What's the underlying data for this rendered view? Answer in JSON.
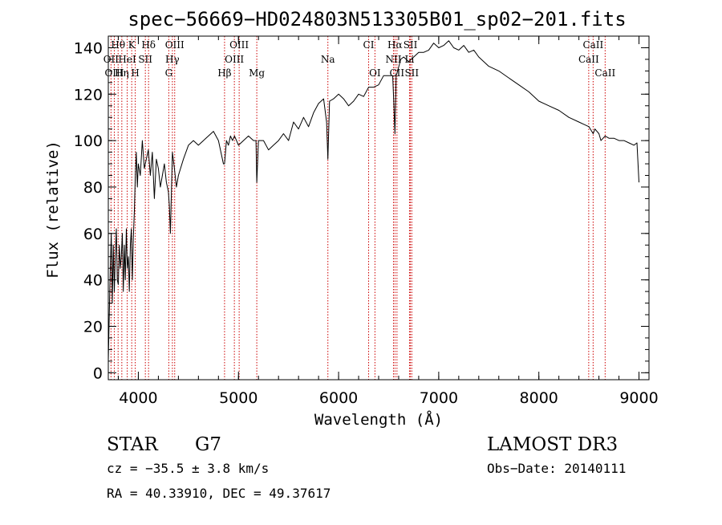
{
  "chart_data": {
    "type": "line",
    "title": "spec−56669−HD024803N513305B01_sp02−201.fits",
    "xlabel": "Wavelength (Å)",
    "ylabel": "Flux (relative)",
    "xlim": [
      3700,
      9100
    ],
    "ylim": [
      -3,
      145
    ],
    "xticks": [
      4000,
      5000,
      6000,
      7000,
      8000,
      9000
    ],
    "xtick_labels": [
      "4000",
      "5000",
      "6000",
      "7000",
      "8000",
      "9000"
    ],
    "yticks": [
      0,
      20,
      40,
      60,
      80,
      100,
      120,
      140
    ],
    "ytick_labels": [
      "0",
      "20",
      "40",
      "60",
      "80",
      "100",
      "120",
      "140"
    ],
    "grid": false,
    "line_color": "#000000",
    "marker_line_color": "#cc0000",
    "spectrum": {
      "name": "flux",
      "x": [
        3700,
        3710,
        3720,
        3730,
        3740,
        3750,
        3760,
        3770,
        3780,
        3790,
        3800,
        3810,
        3820,
        3830,
        3840,
        3850,
        3860,
        3870,
        3880,
        3890,
        3900,
        3910,
        3920,
        3930,
        3940,
        3950,
        3960,
        3970,
        3980,
        3990,
        4000,
        4020,
        4040,
        4060,
        4080,
        4100,
        4120,
        4140,
        4160,
        4180,
        4200,
        4220,
        4240,
        4260,
        4280,
        4300,
        4310,
        4320,
        4340,
        4360,
        4380,
        4400,
        4450,
        4500,
        4550,
        4600,
        4650,
        4700,
        4750,
        4800,
        4850,
        4861,
        4880,
        4900,
        4920,
        4940,
        4960,
        4980,
        5000,
        5050,
        5100,
        5150,
        5175,
        5183,
        5200,
        5250,
        5300,
        5350,
        5400,
        5450,
        5500,
        5550,
        5600,
        5650,
        5700,
        5750,
        5800,
        5850,
        5880,
        5893,
        5910,
        5950,
        6000,
        6050,
        6100,
        6150,
        6200,
        6250,
        6300,
        6350,
        6400,
        6450,
        6500,
        6540,
        6550,
        6563,
        6575,
        6590,
        6620,
        6650,
        6700,
        6750,
        6800,
        6850,
        6900,
        6950,
        7000,
        7050,
        7100,
        7150,
        7200,
        7250,
        7300,
        7350,
        7400,
        7500,
        7600,
        7700,
        7800,
        7900,
        8000,
        8100,
        8200,
        8300,
        8400,
        8450,
        8500,
        8542,
        8560,
        8600,
        8620,
        8662,
        8700,
        8750,
        8800,
        8850,
        8900,
        8950,
        8980,
        9000
      ],
      "y": [
        5,
        25,
        45,
        60,
        30,
        55,
        35,
        50,
        62,
        40,
        38,
        55,
        45,
        50,
        60,
        35,
        55,
        40,
        62,
        45,
        50,
        35,
        55,
        62,
        40,
        58,
        70,
        85,
        95,
        80,
        90,
        85,
        100,
        88,
        92,
        96,
        85,
        95,
        75,
        92,
        88,
        80,
        85,
        90,
        82,
        78,
        72,
        60,
        95,
        88,
        80,
        85,
        92,
        98,
        100,
        98,
        100,
        102,
        104,
        100,
        90,
        90,
        100,
        98,
        102,
        100,
        102,
        100,
        98,
        100,
        102,
        100,
        100,
        82,
        100,
        100,
        96,
        98,
        100,
        103,
        100,
        108,
        105,
        110,
        106,
        112,
        116,
        118,
        108,
        92,
        117,
        118,
        120,
        118,
        115,
        117,
        120,
        119,
        123,
        123,
        124,
        128,
        128,
        128,
        118,
        103,
        128,
        130,
        135,
        136,
        134,
        136,
        138,
        138,
        139,
        142,
        140,
        141,
        143,
        140,
        139,
        141,
        138,
        139,
        136,
        132,
        130,
        127,
        124,
        121,
        117,
        115,
        113,
        110,
        108,
        107,
        106,
        103,
        105,
        103,
        100,
        102,
        101,
        101,
        100,
        100,
        99,
        98,
        99,
        82
      ]
    },
    "spectral_lines": [
      {
        "label": "Hθ",
        "x": 3798,
        "row": 0
      },
      {
        "label": "K",
        "x": 3934,
        "row": 0
      },
      {
        "label": "Hδ",
        "x": 4102,
        "row": 0
      },
      {
        "label": "OIII",
        "x": 4363,
        "row": 0
      },
      {
        "label": "OIII",
        "x": 5007,
        "row": 0
      },
      {
        "label": "CI",
        "x": 6300,
        "row": 0
      },
      {
        "label": "Hα",
        "x": 6563,
        "row": 0
      },
      {
        "label": "SII",
        "x": 6717,
        "row": 0
      },
      {
        "label": "CaII",
        "x": 8542,
        "row": 0
      },
      {
        "label": "OII",
        "x": 3727,
        "row": 1
      },
      {
        "label": "HeI",
        "x": 3889,
        "row": 1
      },
      {
        "label": "SII",
        "x": 4070,
        "row": 1
      },
      {
        "label": "Hγ",
        "x": 4340,
        "row": 1
      },
      {
        "label": "OIII",
        "x": 4959,
        "row": 1
      },
      {
        "label": "Na",
        "x": 5893,
        "row": 1
      },
      {
        "label": "NII",
        "x": 6548,
        "row": 1
      },
      {
        "label": "Li",
        "x": 6708,
        "row": 1
      },
      {
        "label": "CaII",
        "x": 8498,
        "row": 1
      },
      {
        "label": "OIII",
        "x": 3760,
        "row": 2
      },
      {
        "label": "Hη",
        "x": 3835,
        "row": 2
      },
      {
        "label": "H",
        "x": 3969,
        "row": 2
      },
      {
        "label": "G",
        "x": 4304,
        "row": 2
      },
      {
        "label": "Hβ",
        "x": 4861,
        "row": 2
      },
      {
        "label": "Mg",
        "x": 5183,
        "row": 2
      },
      {
        "label": "OI",
        "x": 6363,
        "row": 2
      },
      {
        "label": "CII",
        "x": 6583,
        "row": 2
      },
      {
        "label": "SII",
        "x": 6731,
        "row": 2
      },
      {
        "label": "CaII",
        "x": 8662,
        "row": 2
      }
    ]
  },
  "info": {
    "object_class": "STAR",
    "subclass": "G7",
    "survey": "LAMOST DR3",
    "cz": "cz = −35.5 ± 3.8 km/s",
    "obs_date": "Obs−Date: 20140111",
    "coords": "RA =  40.33910, DEC =  49.37617"
  }
}
